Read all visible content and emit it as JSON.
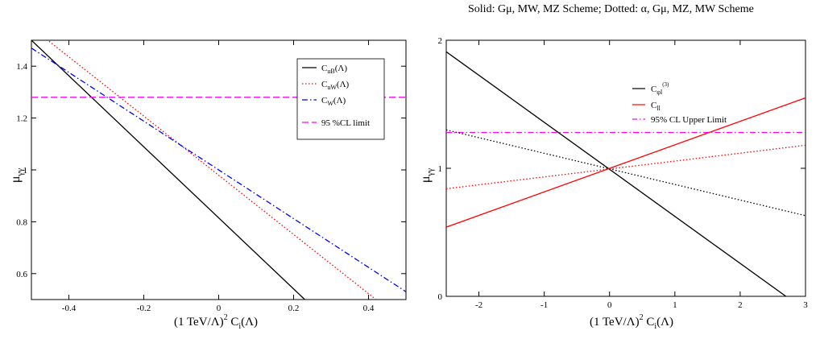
{
  "header": {
    "scheme_note": "Solid: Gμ, MW, MZ Scheme;  Dotted:  α, Gμ, MZ,  MW Scheme"
  },
  "colors": {
    "black": "#000000",
    "red": "#ff0000",
    "blue": "#0000ff",
    "magenta": "#ff00ff"
  },
  "chart_data": [
    {
      "type": "line",
      "xlabel": "(1 TeV/Λ)² Ci(Λ)",
      "ylabel": "μγγ",
      "xlim": [
        -0.5,
        0.5
      ],
      "ylim": [
        0.5,
        1.5
      ],
      "xticks": [
        -0.4,
        -0.2,
        0,
        0.2,
        0.4
      ],
      "xtick_labels": [
        "-0.4",
        "-0.2",
        "0",
        "0.2",
        "0.4"
      ],
      "yticks": [
        0.6,
        0.8,
        1.0,
        1.2,
        1.4
      ],
      "ytick_labels": [
        "0.6",
        "0.8",
        "1",
        "1.2",
        "1.4"
      ],
      "legend_position": "top-right",
      "series": [
        {
          "name": "CuB(Λ)",
          "color": "#000000",
          "style": "solid",
          "x": [
            -0.5,
            0.23
          ],
          "y": [
            1.5,
            0.5
          ]
        },
        {
          "name": "CuW(Λ)",
          "color": "#ff0000",
          "style": "dotted",
          "x": [
            -0.5,
            0.42
          ],
          "y": [
            1.55,
            0.5
          ]
        },
        {
          "name": "CW(Λ)",
          "color": "#0000ff",
          "style": "dashdot",
          "x": [
            -0.5,
            0.5
          ],
          "y": [
            1.47,
            0.53
          ]
        },
        {
          "name": "95 %CL limit",
          "color": "#ff00ff",
          "style": "dashed",
          "x": [
            -0.5,
            0.5
          ],
          "y": [
            1.28,
            1.28
          ]
        }
      ]
    },
    {
      "type": "line",
      "xlabel": "(1 TeV/Λ)² Ci(Λ)",
      "ylabel": "μγγ",
      "xlim": [
        -2.5,
        3
      ],
      "ylim": [
        0,
        2
      ],
      "xticks": [
        -2,
        -1,
        0,
        1,
        2,
        3
      ],
      "xtick_labels": [
        "-2",
        "-1",
        "0",
        "1",
        "2",
        "3"
      ],
      "yticks": [
        0,
        1,
        2
      ],
      "ytick_labels": [
        "0",
        "1",
        "2"
      ],
      "legend_position": "top-left",
      "series": [
        {
          "name": "Cφl(3)",
          "color": "#000000",
          "style": "solid",
          "x": [
            -2.5,
            2.7
          ],
          "y": [
            1.91,
            0
          ]
        },
        {
          "name": "Cll",
          "color": "#ff0000",
          "style": "solid",
          "x": [
            -2.5,
            3
          ],
          "y": [
            0.54,
            1.55
          ]
        },
        {
          "name": "95% CL Upper Limit",
          "color": "#ff00ff",
          "style": "dashdot",
          "x": [
            -2.5,
            3
          ],
          "y": [
            1.28,
            1.28
          ]
        },
        {
          "name": "",
          "color": "#000000",
          "style": "dotted",
          "x": [
            -2.5,
            3
          ],
          "y": [
            1.3,
            0.63
          ]
        },
        {
          "name": "",
          "color": "#ff0000",
          "style": "dotted",
          "x": [
            -2.5,
            3
          ],
          "y": [
            0.84,
            1.18
          ]
        }
      ]
    }
  ]
}
